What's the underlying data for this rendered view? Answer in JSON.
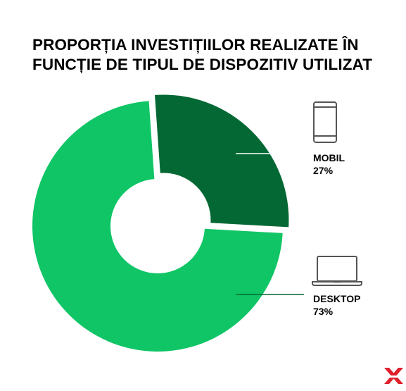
{
  "chart_data": {
    "type": "pie",
    "title_lines": [
      "PROPORȚIA INVESTIȚIILOR REALIZATE ÎN",
      "FUNCȚIE DE TIPUL DE DISPOZITIV UTILIZAT"
    ],
    "slices": [
      {
        "label": "MOBIL",
        "value": 27,
        "value_label": "27%",
        "color": "#036833",
        "icon": "smartphone-icon",
        "exploded": true
      },
      {
        "label": "DESKTOP",
        "value": 73,
        "value_label": "73%",
        "color": "#0fc565",
        "icon": "laptop-icon",
        "exploded": false
      }
    ],
    "donut": true
  },
  "brand": {
    "logo_icon": "xtb-x-logo-icon",
    "logo_color": "#e0202c"
  }
}
